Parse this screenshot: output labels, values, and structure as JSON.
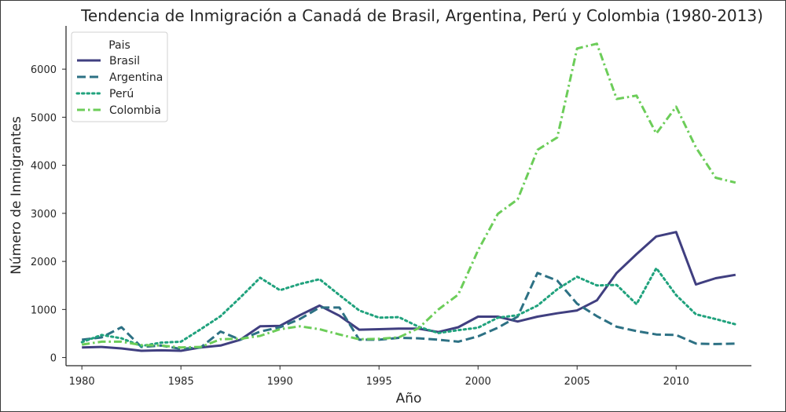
{
  "chart_data": {
    "type": "line",
    "title": "Tendencia de Inmigración a Canadá de Brasil, Argentina, Perú y Colombia (1980-2013)",
    "xlabel": "Año",
    "ylabel": "Número de Inmigrantes",
    "xlim": [
      1979.2,
      2013.8
    ],
    "ylim": [
      -170,
      6900
    ],
    "x_ticks": [
      1980,
      1985,
      1990,
      1995,
      2000,
      2005,
      2010
    ],
    "y_ticks": [
      0,
      1000,
      2000,
      3000,
      4000,
      5000,
      6000
    ],
    "grid": false,
    "legend": {
      "title": "Pais",
      "placement": "top-left"
    },
    "x": [
      1980,
      1981,
      1982,
      1983,
      1984,
      1985,
      1986,
      1987,
      1988,
      1989,
      1990,
      1991,
      1992,
      1993,
      1994,
      1995,
      1996,
      1997,
      1998,
      1999,
      2000,
      2001,
      2002,
      2003,
      2004,
      2005,
      2006,
      2007,
      2008,
      2009,
      2010,
      2011,
      2012,
      2013
    ],
    "series": [
      {
        "name": "Brasil",
        "color": "#403f80",
        "dash": "solid",
        "values": [
          210,
          220,
          190,
          140,
          150,
          140,
          210,
          250,
          370,
          650,
          660,
          880,
          1080,
          870,
          580,
          590,
          600,
          600,
          530,
          630,
          850,
          850,
          750,
          850,
          920,
          980,
          1190,
          1760,
          2150,
          2520,
          2610,
          1520,
          1650,
          1720
        ]
      },
      {
        "name": "Argentina",
        "color": "#2d7184",
        "dash": "dashed",
        "values": [
          370,
          420,
          630,
          220,
          250,
          180,
          210,
          540,
          370,
          540,
          630,
          800,
          1040,
          1040,
          370,
          370,
          410,
          400,
          370,
          330,
          440,
          620,
          850,
          1760,
          1600,
          1120,
          860,
          640,
          550,
          480,
          470,
          290,
          280,
          290
        ]
      },
      {
        "name": "Perú",
        "color": "#20a27d",
        "dash": "dotted",
        "values": [
          320,
          470,
          400,
          240,
          310,
          330,
          590,
          860,
          1250,
          1660,
          1400,
          1530,
          1630,
          1300,
          980,
          830,
          840,
          640,
          510,
          570,
          620,
          830,
          880,
          1080,
          1420,
          1680,
          1500,
          1510,
          1110,
          1860,
          1300,
          900,
          800,
          690
        ]
      },
      {
        "name": "Colombia",
        "color": "#6ccd59",
        "dash": "dashdot",
        "values": [
          270,
          330,
          330,
          260,
          250,
          210,
          220,
          380,
          390,
          450,
          590,
          650,
          590,
          480,
          380,
          390,
          420,
          610,
          1000,
          1310,
          2230,
          2990,
          3290,
          4320,
          4580,
          6430,
          6530,
          5380,
          5450,
          4660,
          5220,
          4370,
          3740,
          3640
        ]
      }
    ]
  }
}
